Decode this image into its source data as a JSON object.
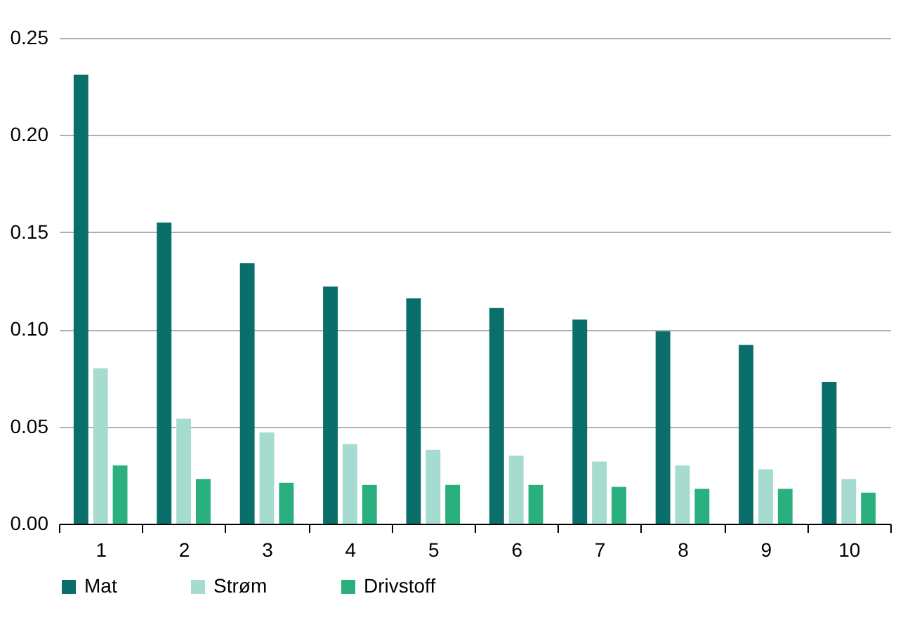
{
  "chart_data": {
    "type": "bar",
    "categories": [
      "1",
      "2",
      "3",
      "4",
      "5",
      "6",
      "7",
      "8",
      "9",
      "10"
    ],
    "series": [
      {
        "name": "Mat",
        "color": "#0a6e6a",
        "values": [
          0.231,
          0.155,
          0.134,
          0.122,
          0.116,
          0.111,
          0.105,
          0.099,
          0.092,
          0.073
        ]
      },
      {
        "name": "Strøm",
        "color": "#a6dccf",
        "values": [
          0.08,
          0.054,
          0.047,
          0.041,
          0.038,
          0.035,
          0.032,
          0.03,
          0.028,
          0.023
        ]
      },
      {
        "name": "Drivstoff",
        "color": "#2aaf7f",
        "values": [
          0.03,
          0.023,
          0.021,
          0.02,
          0.02,
          0.02,
          0.019,
          0.018,
          0.018,
          0.016
        ]
      }
    ],
    "ylim": [
      0,
      0.25
    ],
    "yticks": [
      {
        "value": 0,
        "label": "0.00"
      },
      {
        "value": 0.05,
        "label": "0.05"
      },
      {
        "value": 0.1,
        "label": "0.10"
      },
      {
        "value": 0.15,
        "label": "0.15"
      },
      {
        "value": 0.2,
        "label": "0.20"
      },
      {
        "value": 0.25,
        "label": "0.25"
      }
    ],
    "grid": "y",
    "legend": "bottom"
  }
}
